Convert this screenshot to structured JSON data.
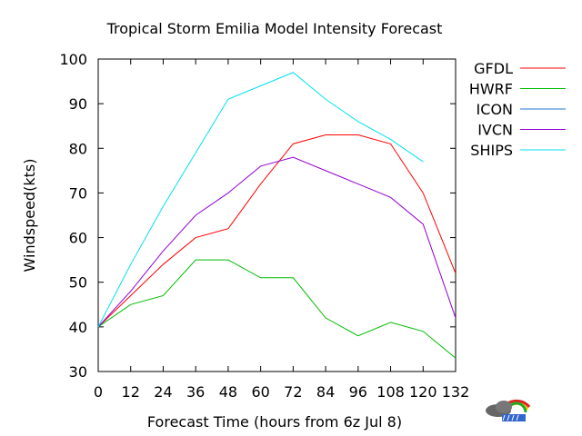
{
  "chart_data": {
    "type": "line",
    "title": "Tropical Storm Emilia Model Intensity Forecast",
    "xlabel": "Forecast Time (hours from 6z Jul 8)",
    "ylabel": "Windspeed(kts)",
    "x": [
      0,
      12,
      24,
      36,
      48,
      60,
      72,
      84,
      96,
      108,
      120,
      132
    ],
    "xlim": [
      0,
      132
    ],
    "ylim": [
      30,
      100
    ],
    "yticks": [
      30,
      40,
      50,
      60,
      70,
      80,
      90,
      100
    ],
    "grid": false,
    "legend_position": "right",
    "series": [
      {
        "name": "GFDL",
        "color": "#ff0000",
        "points": [
          [
            0,
            40
          ],
          [
            12,
            47
          ],
          [
            24,
            54
          ],
          [
            36,
            60
          ],
          [
            48,
            62
          ],
          [
            60,
            72
          ],
          [
            72,
            81
          ],
          [
            84,
            83
          ],
          [
            96,
            83
          ],
          [
            108,
            81
          ],
          [
            120,
            70
          ],
          [
            132,
            52
          ]
        ]
      },
      {
        "name": "HWRF",
        "color": "#00bb00",
        "points": [
          [
            0,
            40
          ],
          [
            12,
            45
          ],
          [
            24,
            47
          ],
          [
            36,
            55
          ],
          [
            48,
            55
          ],
          [
            60,
            51
          ],
          [
            72,
            51
          ],
          [
            84,
            42
          ],
          [
            96,
            38
          ],
          [
            108,
            41
          ],
          [
            120,
            39
          ],
          [
            132,
            33
          ]
        ]
      },
      {
        "name": "ICON",
        "color": "#1f77d0",
        "points": []
      },
      {
        "name": "IVCN",
        "color": "#9400d3",
        "points": [
          [
            0,
            40
          ],
          [
            12,
            48
          ],
          [
            24,
            57
          ],
          [
            36,
            65
          ],
          [
            48,
            70
          ],
          [
            60,
            76
          ],
          [
            72,
            78
          ],
          [
            84,
            75
          ],
          [
            96,
            72
          ],
          [
            108,
            69
          ],
          [
            120,
            63
          ],
          [
            132,
            42
          ]
        ]
      },
      {
        "name": "SHIPS",
        "color": "#00e0f0",
        "points": [
          [
            0,
            40
          ],
          [
            12,
            54
          ],
          [
            24,
            67
          ],
          [
            36,
            79
          ],
          [
            48,
            91
          ],
          [
            60,
            94
          ],
          [
            72,
            97
          ],
          [
            84,
            91
          ],
          [
            96,
            86
          ],
          [
            108,
            82
          ],
          [
            120,
            77
          ]
        ]
      }
    ]
  },
  "logo": {
    "name": "weather-logo-icon",
    "colors": [
      "#555555",
      "#3366cc",
      "#ffcc00",
      "#dd2222",
      "#22aa22"
    ]
  }
}
